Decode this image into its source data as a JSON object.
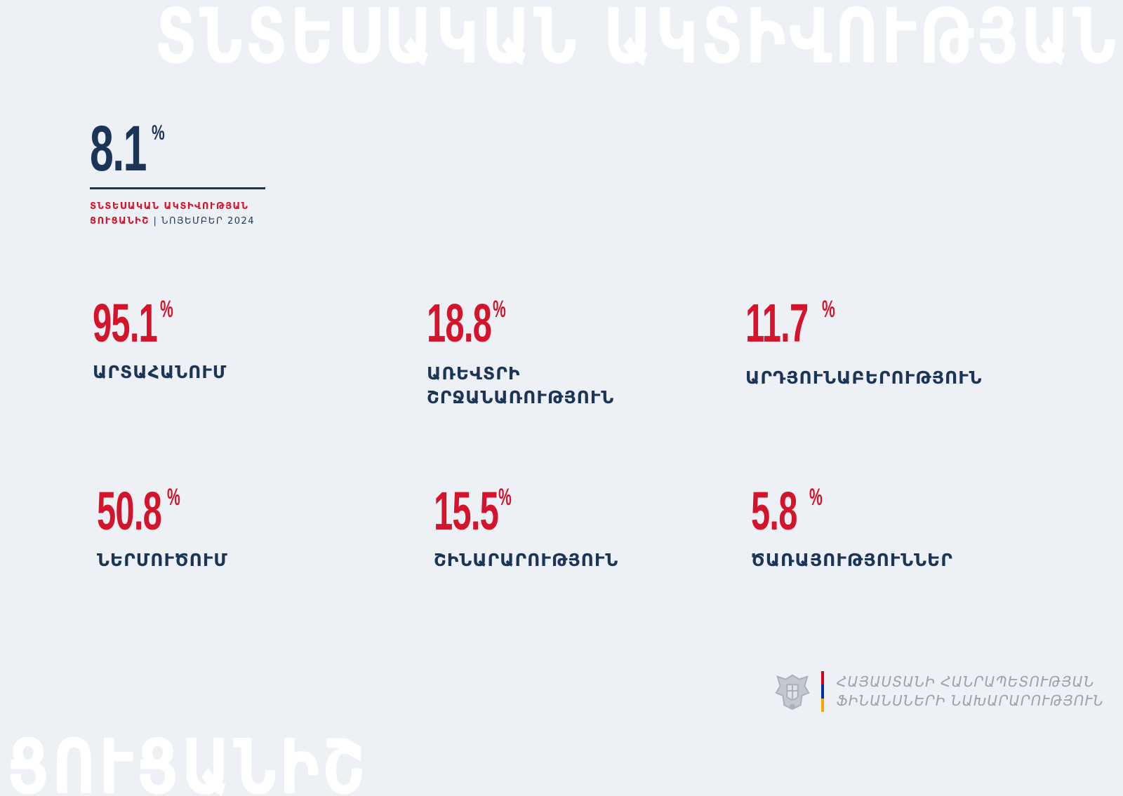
{
  "watermarks": {
    "top": "ՏՆՏԵՍԱԿԱՆ ԱԿՏԻՎՈՒԹՅԱՆ",
    "bottom": "ՑՈՒՑԱՆԻՇ"
  },
  "headline": {
    "value": "8.1",
    "unit": "%",
    "caption_line1": "ՏՆՏԵՍԱԿԱՆ ԱԿՏԻՎՈՒԹՅԱՆ",
    "caption_line2_red": "ՑՈՒՑԱՆԻՇ",
    "caption_separator": "|",
    "caption_date": "ՆՈՅԵՄԲԵՐ 2024"
  },
  "stats": [
    {
      "value": "95.1",
      "unit": "%",
      "label_line1": "ԱՐՏԱՀԱՆՈՒՄ",
      "label_line2": ""
    },
    {
      "value": "18.8",
      "unit": "%",
      "label_line1": "ԱՌԵՎՏՐԻ",
      "label_line2": "ՇՐՋԱՆԱՌՈՒԹՅՈՒՆ"
    },
    {
      "value": "11.7",
      "unit": "%",
      "label_line1": "ԱՐԴՅՈՒՆԱԲԵՐՈՒԹՅՈՒՆ",
      "label_line2": ""
    },
    {
      "value": "50.8",
      "unit": "%",
      "label_line1": "ՆԵՐՄՈՒԾՈՒՄ",
      "label_line2": ""
    },
    {
      "value": "15.5",
      "unit": "%",
      "label_line1": "ՇԻՆԱՐԱՐՈՒԹՅՈՒՆ",
      "label_line2": ""
    },
    {
      "value": "5.8",
      "unit": "%",
      "label_line1": "ԾԱՌԱՅՈՒԹՅՈՒՆՆԵՐ",
      "label_line2": ""
    }
  ],
  "footer": {
    "org_line1": "ՀԱՅԱՍՏԱՆԻ ՀԱՆՐԱՊԵՏՈՒԹՅԱՆ",
    "org_line2": "ՖԻՆԱՆՍՆԵՐԻ ՆԱԽԱՐԱՐՈՒԹՅՈՒՆ",
    "emblem_icon": "armenia-coat-of-arms-icon",
    "flag_colors": [
      "#d90012",
      "#0033a0",
      "#f2a800"
    ]
  },
  "colors": {
    "background": "#edf1f6",
    "navy": "#1c3557",
    "red": "#d4142a"
  }
}
